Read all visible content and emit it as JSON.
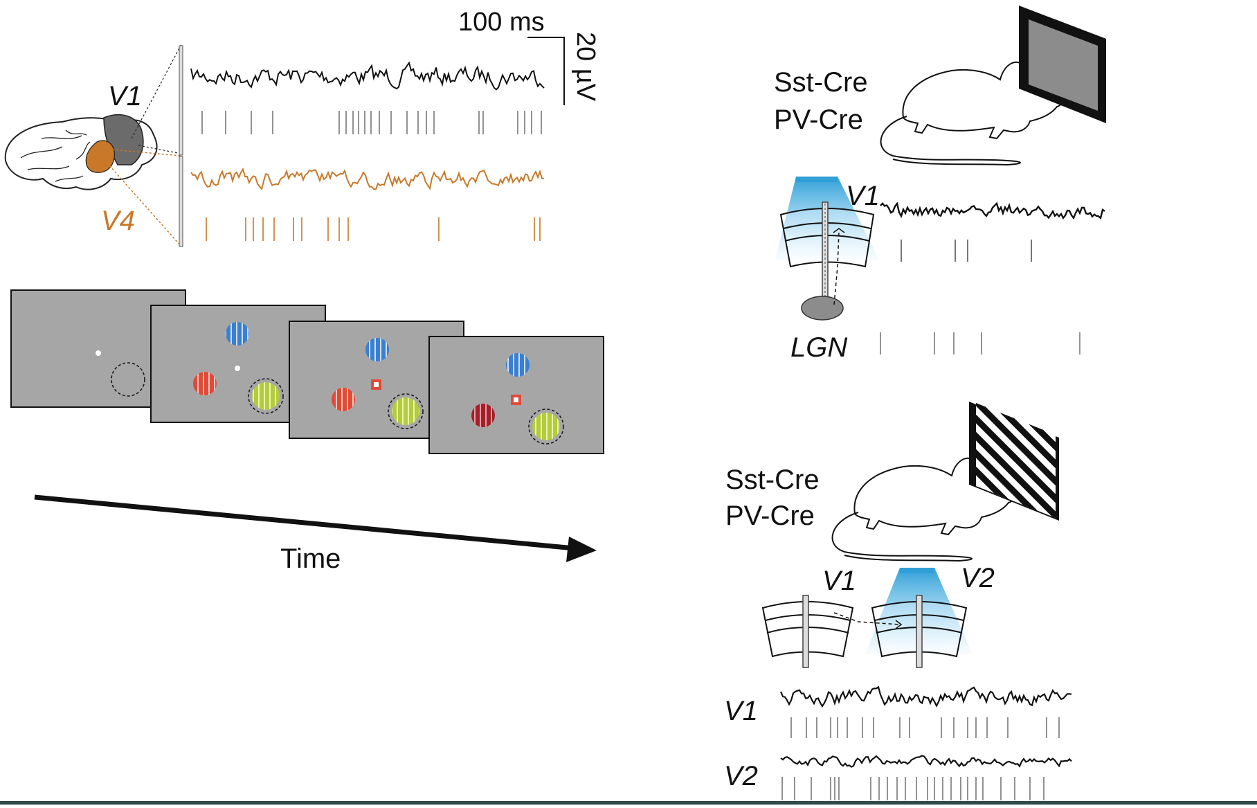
{
  "scale_bar": {
    "time": "100 ms",
    "voltage": "20 µV"
  },
  "monkey": {
    "v1_label": "V1",
    "v4_label": "V4",
    "v1_color": "#111111",
    "v4_color": "#c87828",
    "area_v1_color": "#6b6b6b",
    "area_v4_color": "#c87828"
  },
  "task": {
    "time_label": "Time",
    "screen_color": "#a6a6a6",
    "grating_colors": {
      "blue": "#3b7fd0",
      "red": "#e04a38",
      "dark_red": "#a3202a",
      "green": "#b4cc3c"
    }
  },
  "mouse_top": {
    "line1": "Sst-Cre",
    "line2": "PV-Cre",
    "v1_label": "V1",
    "lgn_label": "LGN",
    "stimulus": "gray-screen",
    "light_color": "#2f9fd6"
  },
  "mouse_bottom": {
    "line1": "Sst-Cre",
    "line2": "PV-Cre",
    "v1_label": "V1",
    "v2_label": "V2",
    "trace_v1_label": "V1",
    "trace_v2_label": "V2",
    "stimulus": "oriented-grating"
  }
}
